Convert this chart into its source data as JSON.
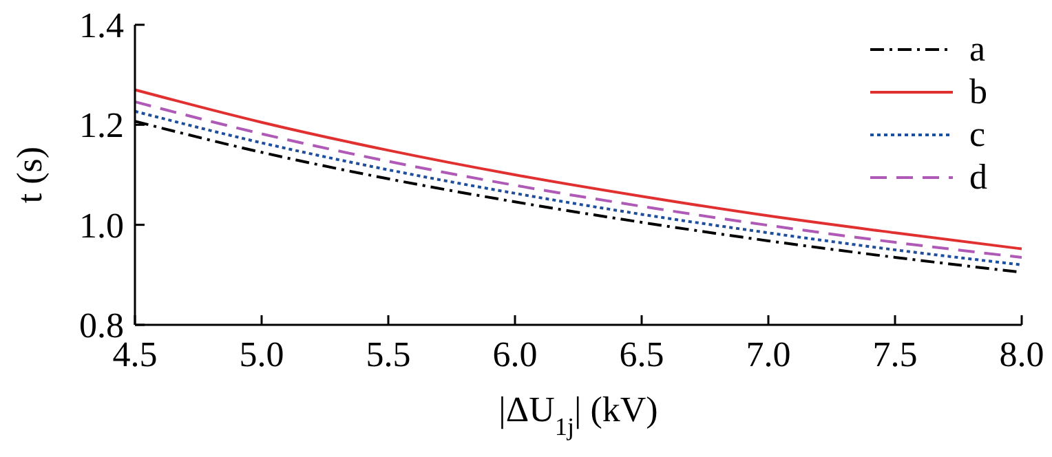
{
  "chart_data": {
    "type": "line",
    "xlabel": "|ΔU$_{1j}$| (kV)",
    "ylabel": "t (s)",
    "x": [
      4.5,
      5.0,
      5.5,
      6.0,
      6.5,
      7.0,
      7.5,
      8.0
    ],
    "xlim": [
      4.5,
      8.0
    ],
    "xticks": [
      4.5,
      {
        "value": 5,
        "label": "5.0"
      },
      5.5,
      {
        "value": 6,
        "label": "6.0"
      },
      6.5,
      {
        "value": 7,
        "label": "7.0"
      },
      7.5,
      {
        "value": 8,
        "label": "8.0"
      }
    ],
    "ylim": [
      0.8,
      1.4
    ],
    "yticks": [
      0.8,
      {
        "value": 1,
        "label": "1.0"
      },
      1.2,
      1.4
    ],
    "grid": false,
    "legend": "top right",
    "marker": "none",
    "series": [
      {
        "name": "a",
        "color": "#000000",
        "line_style": "dashdot",
        "values": [
          1.207,
          1.145,
          1.092,
          1.046,
          1.005,
          0.968,
          0.935,
          0.905
        ]
      },
      {
        "name": "b",
        "color": "#e03030",
        "line_style": "solid",
        "values": [
          1.27,
          1.205,
          1.149,
          1.1,
          1.057,
          1.018,
          0.984,
          0.952
        ]
      },
      {
        "name": "c",
        "color": "#1f4e9c",
        "line_style": "dotted",
        "values": [
          1.227,
          1.164,
          1.11,
          1.063,
          1.021,
          0.984,
          0.95,
          0.92
        ]
      },
      {
        "name": "d",
        "color": "#b05ab8",
        "line_style": "dashed",
        "values": [
          1.246,
          1.182,
          1.127,
          1.079,
          1.037,
          0.999,
          0.965,
          0.935
        ]
      }
    ]
  }
}
